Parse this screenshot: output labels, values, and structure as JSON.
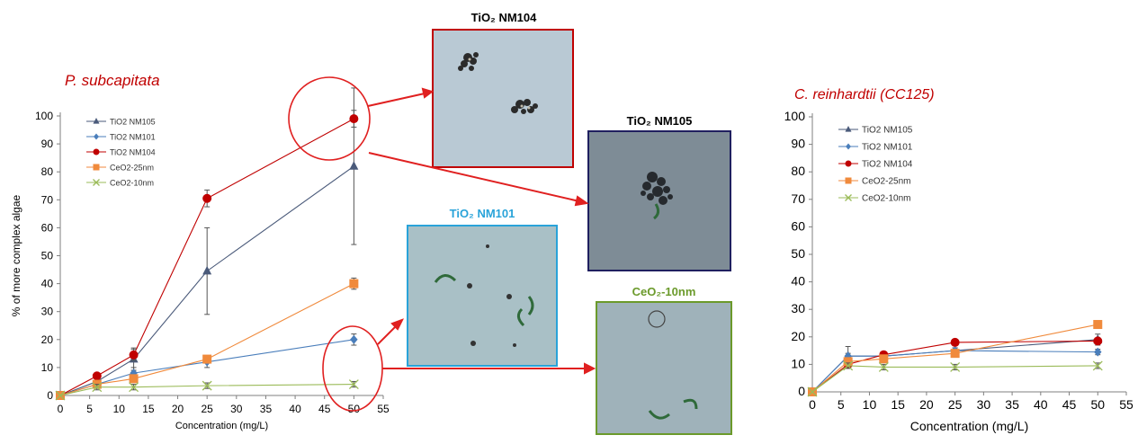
{
  "left_title": "P. subcapitata",
  "right_title": "C. reinhardtii (CC125)",
  "images": [
    {
      "label": "TiO₂ NM104",
      "color": "#c00000"
    },
    {
      "label": "TiO₂ NM105",
      "color": "#1f1f5f"
    },
    {
      "label": "TiO₂ NM101",
      "color": "#29a3d9"
    },
    {
      "label": "CeO₂-10nm",
      "color": "#6b9a2b"
    }
  ],
  "chart_data": [
    {
      "type": "line",
      "title": "P. subcapitata",
      "xlabel": "Concentration (mg/L)",
      "ylabel": "% of more complex algae",
      "xlim": [
        0,
        55
      ],
      "ylim": [
        0,
        100
      ],
      "xticks": [
        0,
        5,
        10,
        15,
        20,
        25,
        30,
        35,
        40,
        45,
        50,
        55
      ],
      "yticks": [
        0,
        10,
        20,
        30,
        40,
        50,
        60,
        70,
        80,
        90,
        100
      ],
      "legend_position": "top-left",
      "x": [
        0,
        6.25,
        12.5,
        25,
        50
      ],
      "series": [
        {
          "name": "TiO2 NM105",
          "marker": "triangle",
          "color": "#4a5a7a",
          "values": [
            0,
            5,
            13,
            44.5,
            82
          ],
          "error": [
            0,
            1,
            4,
            15.5,
            28
          ]
        },
        {
          "name": "TiO2 NM101",
          "marker": "diamond",
          "color": "#4a7ebb",
          "values": [
            0,
            4,
            8,
            12,
            20
          ],
          "error": [
            0,
            1,
            2,
            2,
            2
          ]
        },
        {
          "name": "TiO2 NM104",
          "marker": "circle",
          "color": "#c00000",
          "values": [
            0,
            7,
            14.5,
            70.5,
            99
          ],
          "error": [
            0,
            1,
            2,
            3,
            3
          ]
        },
        {
          "name": "CeO2-25nm",
          "marker": "square",
          "color": "#f08a3c",
          "values": [
            0,
            4,
            6,
            13,
            40
          ],
          "error": [
            0,
            1,
            1,
            1,
            2
          ]
        },
        {
          "name": "CeO2-10nm",
          "marker": "x",
          "color": "#9bbb59",
          "values": [
            0,
            3,
            3,
            3.5,
            4
          ],
          "error": [
            0,
            1,
            1,
            1,
            1
          ]
        }
      ]
    },
    {
      "type": "line",
      "title": "C. reinhardtii (CC125)",
      "xlabel": "Concentration (mg/L)",
      "ylabel": "% of more complex algae",
      "xlim": [
        0,
        55
      ],
      "ylim": [
        0,
        100
      ],
      "xticks": [
        0,
        5,
        10,
        15,
        20,
        25,
        30,
        35,
        40,
        45,
        50,
        55
      ],
      "yticks": [
        0,
        10,
        20,
        30,
        40,
        50,
        60,
        70,
        80,
        90,
        100
      ],
      "legend_position": "top-left",
      "x": [
        0,
        6.25,
        12.5,
        25,
        50
      ],
      "series": [
        {
          "name": "TiO2 NM105",
          "marker": "triangle",
          "color": "#4a5a7a",
          "values": [
            0,
            13,
            13,
            15,
            19
          ],
          "error": [
            0,
            3.5,
            1,
            1,
            2
          ]
        },
        {
          "name": "TiO2 NM101",
          "marker": "diamond",
          "color": "#4a7ebb",
          "values": [
            0,
            13,
            13,
            15,
            14.5
          ],
          "error": [
            0,
            1,
            1,
            1,
            1
          ]
        },
        {
          "name": "TiO2 NM104",
          "marker": "circle",
          "color": "#c00000",
          "values": [
            0,
            10,
            13.5,
            18,
            18.5
          ],
          "error": [
            0,
            1,
            1,
            1,
            1
          ]
        },
        {
          "name": "CeO2-25nm",
          "marker": "square",
          "color": "#f08a3c",
          "values": [
            0,
            11,
            12,
            14,
            24.5
          ],
          "error": [
            0,
            1,
            1,
            1,
            1
          ]
        },
        {
          "name": "CeO2-10nm",
          "marker": "x",
          "color": "#9bbb59",
          "values": [
            0,
            9.5,
            9,
            9,
            9.5
          ],
          "error": [
            0,
            1,
            1,
            1,
            1
          ]
        }
      ]
    }
  ]
}
